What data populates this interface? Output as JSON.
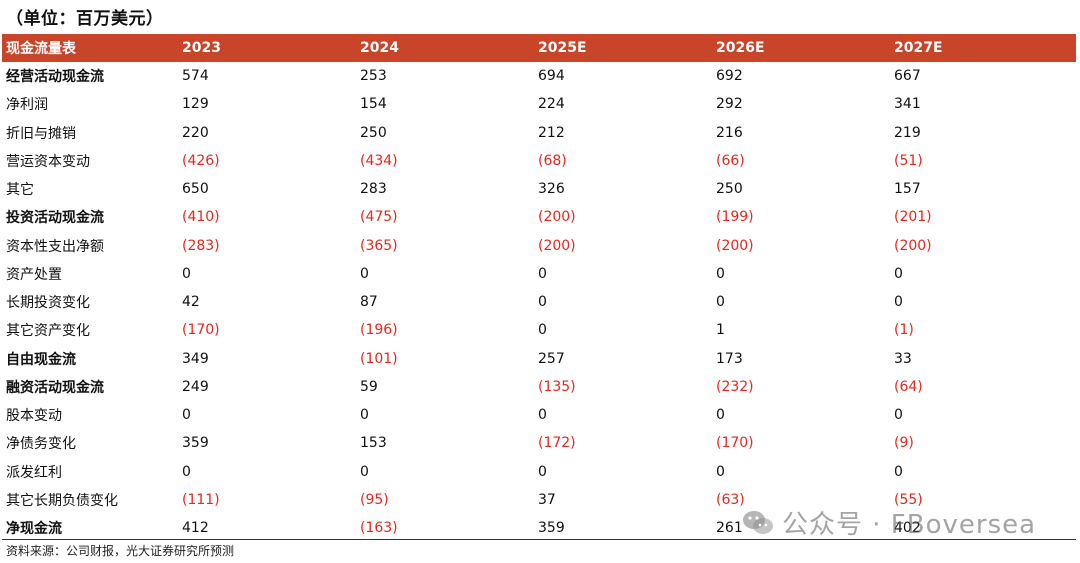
{
  "unit_label": "（单位：百万美元）",
  "header": {
    "label": "现金流量表",
    "years": [
      "2023",
      "2024",
      "2025E",
      "2026E",
      "2027E"
    ]
  },
  "rows": [
    {
      "label": "经营活动现金流",
      "bold": true,
      "values": [
        "574",
        "253",
        "694",
        "692",
        "667"
      ]
    },
    {
      "label": "净利润",
      "bold": false,
      "values": [
        "129",
        "154",
        "224",
        "292",
        "341"
      ]
    },
    {
      "label": "折旧与摊销",
      "bold": false,
      "values": [
        "220",
        "250",
        "212",
        "216",
        "219"
      ]
    },
    {
      "label": "营运资本变动",
      "bold": false,
      "values": [
        "(426)",
        "(434)",
        "(68)",
        "(66)",
        "(51)"
      ]
    },
    {
      "label": "其它",
      "bold": false,
      "values": [
        "650",
        "283",
        "326",
        "250",
        "157"
      ]
    },
    {
      "label": "投资活动现金流",
      "bold": true,
      "values": [
        "(410)",
        "(475)",
        "(200)",
        "(199)",
        "(201)"
      ]
    },
    {
      "label": "资本性支出净额",
      "bold": false,
      "values": [
        "(283)",
        "(365)",
        "(200)",
        "(200)",
        "(200)"
      ]
    },
    {
      "label": "资产处置",
      "bold": false,
      "values": [
        "0",
        "0",
        "0",
        "0",
        "0"
      ]
    },
    {
      "label": "长期投资变化",
      "bold": false,
      "values": [
        "42",
        "87",
        "0",
        "0",
        "0"
      ]
    },
    {
      "label": "其它资产变化",
      "bold": false,
      "values": [
        "(170)",
        "(196)",
        "0",
        "1",
        "(1)"
      ]
    },
    {
      "label": "自由现金流",
      "bold": true,
      "values": [
        "349",
        "(101)",
        "257",
        "173",
        "33"
      ]
    },
    {
      "label": "融资活动现金流",
      "bold": true,
      "values": [
        "249",
        "59",
        "(135)",
        "(232)",
        "(64)"
      ]
    },
    {
      "label": "股本变动",
      "bold": false,
      "values": [
        "0",
        "0",
        "0",
        "0",
        "0"
      ]
    },
    {
      "label": "净债务变化",
      "bold": false,
      "values": [
        "359",
        "153",
        "(172)",
        "(170)",
        "(9)"
      ]
    },
    {
      "label": "派发红利",
      "bold": false,
      "values": [
        "0",
        "0",
        "0",
        "0",
        "0"
      ]
    },
    {
      "label": "其它长期负债变化",
      "bold": false,
      "values": [
        "(111)",
        "(95)",
        "37",
        "(63)",
        "(55)"
      ]
    },
    {
      "label": "净现金流",
      "bold": true,
      "values": [
        "412",
        "(163)",
        "359",
        "261",
        "402"
      ]
    }
  ],
  "source": "资料来源：公司财报，光大证券研究所预测",
  "watermark": "公众号 · FBoversea",
  "colors": {
    "header_bg": "#c8452a",
    "negative": "#e8261c"
  }
}
